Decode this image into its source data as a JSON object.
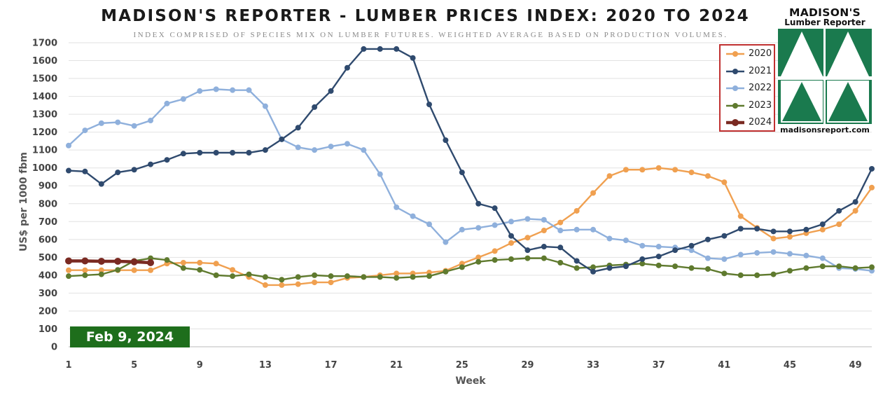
{
  "chart_data": {
    "type": "line",
    "title": "MADISON'S REPORTER - LUMBER PRICES INDEX: 2020 TO 2024",
    "subtitle": "INDEX COMPRISED OF SPECIES MIX ON LUMBER FUTURES. WEIGHTED AVERAGE BASED ON PRODUCTION VOLUMES.",
    "xlabel": "Week",
    "ylabel": "US$ per 1000 fbm",
    "xlim": [
      1,
      50
    ],
    "ylim": [
      0,
      1700
    ],
    "x_ticks": [
      "1",
      "5",
      "9",
      "13",
      "17",
      "21",
      "25",
      "29",
      "33",
      "37",
      "41",
      "45",
      "49"
    ],
    "y_ticks": [
      "0",
      "100",
      "200",
      "300",
      "400",
      "500",
      "600",
      "700",
      "800",
      "900",
      "1000",
      "1100",
      "1200",
      "1300",
      "1400",
      "1500",
      "1600",
      "1700"
    ],
    "grid": "horizontal",
    "legend_position": "top-right",
    "annotation": "Feb 9, 2024",
    "series": [
      {
        "name": "2020",
        "color": "#f0a050",
        "x": [
          1,
          2,
          3,
          4,
          5,
          6,
          7,
          8,
          9,
          10,
          11,
          12,
          13,
          14,
          15,
          16,
          17,
          18,
          19,
          20,
          21,
          22,
          23,
          24,
          25,
          26,
          27,
          28,
          29,
          30,
          31,
          32,
          33,
          34,
          35,
          36,
          37,
          38,
          39,
          40,
          41,
          42,
          43,
          44,
          45,
          46,
          47,
          48,
          49,
          50
        ],
        "values": [
          428,
          428,
          428,
          428,
          428,
          428,
          465,
          470,
          470,
          465,
          430,
          390,
          345,
          345,
          350,
          360,
          360,
          385,
          390,
          400,
          410,
          410,
          415,
          425,
          465,
          500,
          535,
          580,
          610,
          650,
          695,
          760,
          860,
          955,
          990,
          990,
          1000,
          990,
          975,
          955,
          920,
          730,
          665,
          605,
          615,
          635,
          655,
          685,
          760,
          890
        ]
      },
      {
        "name": "2021",
        "color": "#2f4a6e",
        "x": [
          1,
          2,
          3,
          4,
          5,
          6,
          7,
          8,
          9,
          10,
          11,
          12,
          13,
          14,
          15,
          16,
          17,
          18,
          19,
          20,
          21,
          22,
          23,
          24,
          25,
          26,
          27,
          28,
          29,
          30,
          31,
          32,
          33,
          34,
          35,
          36,
          37,
          38,
          39,
          40,
          41,
          42,
          43,
          44,
          45,
          46,
          47,
          48,
          49,
          50
        ],
        "values": [
          985,
          980,
          910,
          975,
          990,
          1020,
          1045,
          1080,
          1085,
          1085,
          1085,
          1085,
          1100,
          1160,
          1225,
          1340,
          1430,
          1560,
          1665,
          1665,
          1665,
          1615,
          1355,
          1155,
          975,
          800,
          775,
          620,
          540,
          560,
          555,
          480,
          420,
          440,
          450,
          490,
          505,
          540,
          565,
          600,
          620,
          660,
          660,
          645,
          645,
          655,
          685,
          760,
          810,
          995
        ]
      },
      {
        "name": "2022",
        "color": "#8fb0dc",
        "x": [
          1,
          2,
          3,
          4,
          5,
          6,
          7,
          8,
          9,
          10,
          11,
          12,
          13,
          14,
          15,
          16,
          17,
          18,
          19,
          20,
          21,
          22,
          23,
          24,
          25,
          26,
          27,
          28,
          29,
          30,
          31,
          32,
          33,
          34,
          35,
          36,
          37,
          38,
          39,
          40,
          41,
          42,
          43,
          44,
          45,
          46,
          47,
          48,
          49,
          50
        ],
        "values": [
          1125,
          1210,
          1250,
          1255,
          1235,
          1265,
          1360,
          1385,
          1430,
          1440,
          1435,
          1435,
          1345,
          1160,
          1115,
          1100,
          1120,
          1135,
          1100,
          965,
          780,
          730,
          685,
          585,
          655,
          665,
          680,
          700,
          715,
          710,
          650,
          655,
          655,
          605,
          595,
          565,
          560,
          555,
          540,
          495,
          490,
          515,
          525,
          530,
          520,
          510,
          495,
          440,
          435,
          425
        ]
      },
      {
        "name": "2023",
        "color": "#5f7a2e",
        "x": [
          1,
          2,
          3,
          4,
          5,
          6,
          7,
          8,
          9,
          10,
          11,
          12,
          13,
          14,
          15,
          16,
          17,
          18,
          19,
          20,
          21,
          22,
          23,
          24,
          25,
          26,
          27,
          28,
          29,
          30,
          31,
          32,
          33,
          34,
          35,
          36,
          37,
          38,
          39,
          40,
          41,
          42,
          43,
          44,
          45,
          46,
          47,
          48,
          49,
          50
        ],
        "values": [
          395,
          400,
          405,
          430,
          480,
          495,
          485,
          440,
          430,
          400,
          395,
          405,
          390,
          375,
          390,
          400,
          395,
          395,
          390,
          390,
          385,
          390,
          395,
          420,
          445,
          475,
          485,
          490,
          495,
          495,
          470,
          440,
          445,
          455,
          460,
          465,
          455,
          450,
          440,
          435,
          410,
          400,
          400,
          405,
          425,
          440,
          450,
          450,
          440,
          445
        ]
      },
      {
        "name": "2024",
        "color": "#7a2a22",
        "x": [
          1,
          2,
          3,
          4,
          5,
          6
        ],
        "values": [
          480,
          480,
          478,
          478,
          475,
          470
        ]
      }
    ]
  },
  "logo": {
    "name": "MADISON'S",
    "sub": "Lumber Reporter",
    "url": "madisonsreport.com"
  }
}
